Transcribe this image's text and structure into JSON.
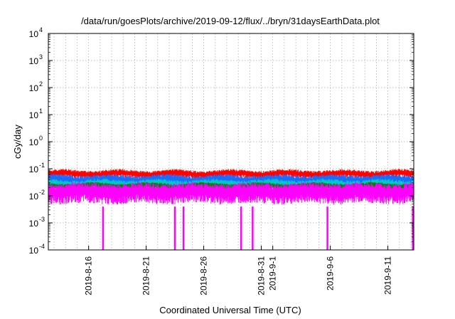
{
  "chart_data": {
    "type": "line",
    "title": "/data/run/goesPlots/archive/2019-09-12/flux/../bryn/31daysEarthData.plot",
    "xlabel": "Coordinated Universal Time (UTC)",
    "ylabel": "cGy/day",
    "yscale": "log",
    "ylim": [
      0.0001,
      10000
    ],
    "xlim": [
      "2019-08-12 12:00",
      "2019-09-13 06:00"
    ],
    "grid": true,
    "legend": "none",
    "y_ticks": [
      {
        "value": 0.0001,
        "base": "10",
        "exp": "-4"
      },
      {
        "value": 0.001,
        "base": "10",
        "exp": "-3"
      },
      {
        "value": 0.01,
        "base": "10",
        "exp": "-2"
      },
      {
        "value": 0.1,
        "base": "10",
        "exp": "-1"
      },
      {
        "value": 1,
        "base": "10",
        "exp": "0"
      },
      {
        "value": 10,
        "base": "10",
        "exp": "1"
      },
      {
        "value": 100,
        "base": "10",
        "exp": "2"
      },
      {
        "value": 1000,
        "base": "10",
        "exp": "3"
      },
      {
        "value": 10000,
        "base": "10",
        "exp": "4"
      }
    ],
    "x_ticks": [
      "2019-8-16",
      "2019-8-21",
      "2019-8-26",
      "2019-8-31",
      "2019-9-1",
      "2019-9-6",
      "2019-9-11"
    ],
    "series": [
      {
        "color": "#ff0000",
        "typical_low": 0.04,
        "typical_high": 0.09
      },
      {
        "color": "#1a6cff",
        "typical_low": 0.02,
        "typical_high": 0.06
      },
      {
        "color": "#00c8c8",
        "typical_low": 0.015,
        "typical_high": 0.04
      },
      {
        "color": "#008000",
        "typical_low": 0.015,
        "typical_high": 0.03
      },
      {
        "color": "#ff00ff",
        "typical_low": 0.004,
        "typical_high": 0.03,
        "dropouts": [
          "2019-08-17 06:00",
          "2019-08-23 12:00",
          "2019-08-24 06:00",
          "2019-08-29 06:00",
          "2019-08-30 06:00",
          "2019-09-05 18:00",
          "2019-09-13 04:00"
        ],
        "dropout_value": 0.0001
      }
    ]
  }
}
